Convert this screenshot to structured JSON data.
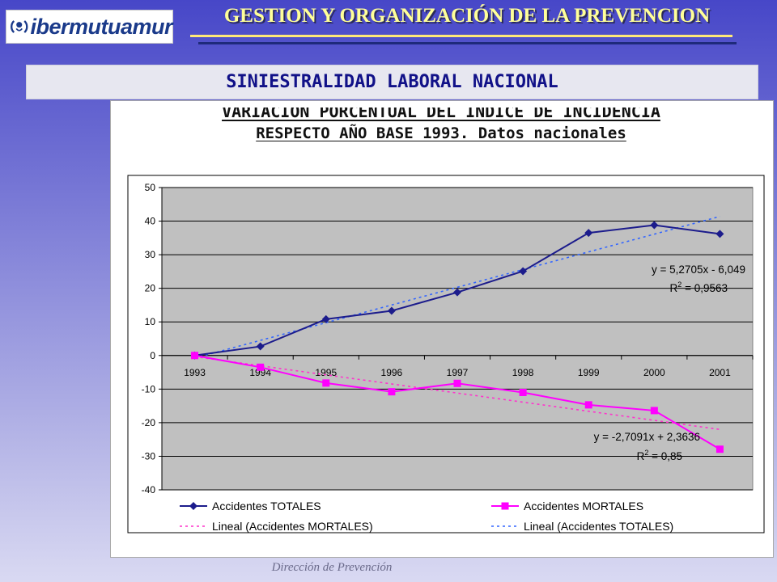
{
  "header": {
    "logo_text": "ibermutuamur",
    "title": "GESTION Y ORGANIZACIÓN DE LA PREVENCION",
    "subtitle": "SINIESTRALIDAD LABORAL NACIONAL"
  },
  "footer": {
    "text": "Dirección de Prevención"
  },
  "chart_data": {
    "type": "line",
    "title_line1": "VARIACIÓN PORCENTUAL DEL ÍNDICE DE INCIDENCIA",
    "title_line2": "RESPECTO AÑO BASE 1993.  Datos nacionales",
    "categories": [
      "1993",
      "1994",
      "1995",
      "1996",
      "1997",
      "1998",
      "1999",
      "2000",
      "2001"
    ],
    "ylim": [
      -40,
      50
    ],
    "yticks": [
      -40,
      -30,
      -20,
      -10,
      0,
      10,
      20,
      30,
      40,
      50
    ],
    "ytick_labels": [
      "-40",
      "-30",
      "-20",
      "-10",
      "0",
      "10",
      "20",
      "30",
      "40",
      "50"
    ],
    "grid": true,
    "plot_background": "#c0c0c0",
    "series": [
      {
        "name": "Accidentes TOTALES",
        "color": "#1c1c8c",
        "marker": "diamond",
        "values": [
          0,
          2.7,
          10.8,
          13.3,
          18.8,
          25.1,
          36.5,
          38.8,
          36.2
        ]
      },
      {
        "name": "Accidentes MORTALES",
        "color": "#ff00ff",
        "marker": "square",
        "values": [
          0,
          -3.5,
          -8.2,
          -10.8,
          -8.3,
          -11.0,
          -14.7,
          -16.4,
          -27.9
        ]
      }
    ],
    "trendlines": [
      {
        "name": "Lineal (Accidentes MORTALES)",
        "color": "#ff33cc",
        "slope": -2.7091,
        "intercept": 2.3636,
        "equation": "y = -2,7091x + 2,3636",
        "r2_label": "R",
        "r2_value": " = 0,85"
      },
      {
        "name": "Lineal (Accidentes TOTALES)",
        "color": "#3366ff",
        "slope": 5.2705,
        "intercept": -6.049,
        "equation": "y = 5,2705x - 6,049",
        "r2_label": "R",
        "r2_value": " = 0,9563"
      }
    ],
    "legend_position": "bottom"
  }
}
